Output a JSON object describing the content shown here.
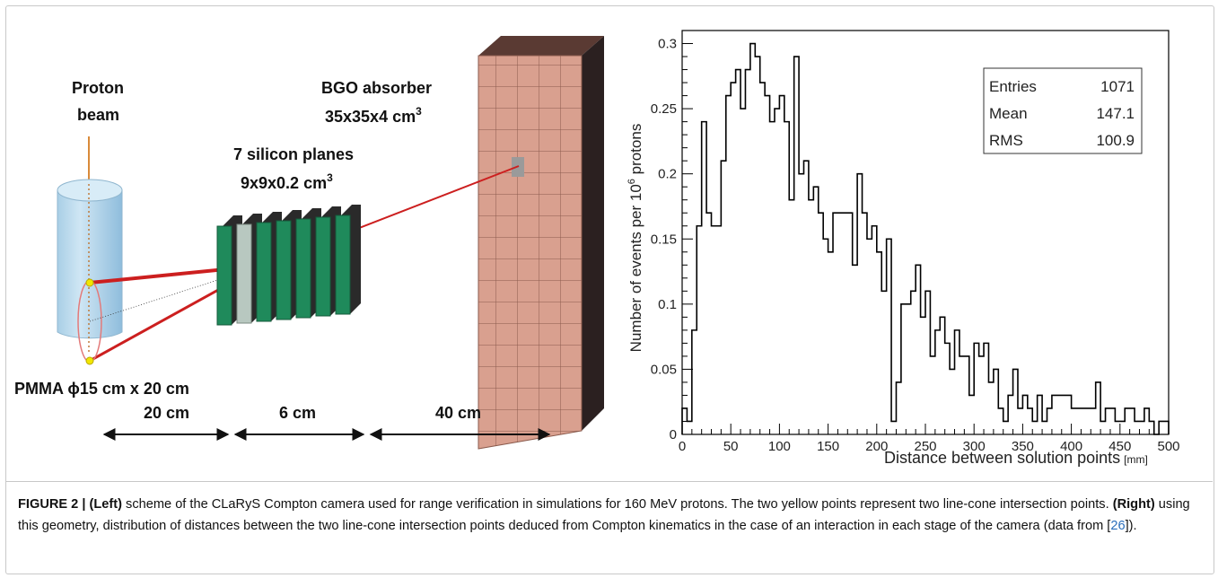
{
  "scheme": {
    "proton_label": [
      "Proton",
      "beam"
    ],
    "bgo_label": "BGO absorber",
    "bgo_dims": "35x35x4 cm",
    "silicon_label": "7 silicon planes",
    "silicon_dims": "9x9x0.2 cm",
    "cube_exp": "3",
    "pmma_label": "PMMA ϕ15 cm x 20 cm",
    "distances": [
      "20 cm",
      "6 cm",
      "40 cm"
    ],
    "colors": {
      "cylinder": "#bcd9ec",
      "silicon": "#1f8a5b",
      "absorber": "#d9a08f",
      "ray": "#cc1f1f",
      "point": "#f2e600"
    }
  },
  "chart_data": {
    "type": "histogram",
    "xlabel": "Distance  between solution points",
    "xunit": "[mm]",
    "ylabel": "Number of events per 10",
    "ylabel_exp": "6",
    "ylabel_tail": " protons",
    "xlim": [
      0,
      500
    ],
    "ylim": [
      0,
      0.31
    ],
    "x_ticks": [
      0,
      50,
      100,
      150,
      200,
      250,
      300,
      350,
      400,
      450,
      500
    ],
    "y_ticks": [
      0,
      0.05,
      0.1,
      0.15,
      0.2,
      0.25,
      0.3
    ],
    "y_tick_labels": [
      "0",
      "0.05",
      "0.1",
      "0.15",
      "0.2",
      "0.25",
      "0.3"
    ],
    "bin_width": 5,
    "values": [
      0.02,
      0.01,
      0.08,
      0.16,
      0.24,
      0.17,
      0.16,
      0.16,
      0.21,
      0.26,
      0.27,
      0.28,
      0.25,
      0.28,
      0.3,
      0.29,
      0.27,
      0.26,
      0.24,
      0.25,
      0.26,
      0.24,
      0.18,
      0.29,
      0.2,
      0.21,
      0.18,
      0.19,
      0.17,
      0.15,
      0.14,
      0.17,
      0.17,
      0.17,
      0.17,
      0.13,
      0.2,
      0.17,
      0.15,
      0.16,
      0.14,
      0.11,
      0.15,
      0.01,
      0.04,
      0.1,
      0.1,
      0.11,
      0.13,
      0.09,
      0.11,
      0.06,
      0.08,
      0.09,
      0.07,
      0.05,
      0.08,
      0.06,
      0.06,
      0.03,
      0.07,
      0.06,
      0.07,
      0.04,
      0.05,
      0.02,
      0.01,
      0.03,
      0.05,
      0.02,
      0.03,
      0.02,
      0.01,
      0.03,
      0.01,
      0.02,
      0.03,
      0.03,
      0.03,
      0.03,
      0.02,
      0.02,
      0.02,
      0.02,
      0.02,
      0.04,
      0.01,
      0.02,
      0.02,
      0.01,
      0.01,
      0.02,
      0.02,
      0.01,
      0.01,
      0.02,
      0.01,
      0.0,
      0.01,
      0.01
    ],
    "stats": [
      {
        "label": "Entries",
        "value": "1071"
      },
      {
        "label": "Mean",
        "value": "147.1"
      },
      {
        "label": "RMS",
        "value": "100.9"
      }
    ]
  },
  "caption": {
    "figure": "FIGURE 2 | ",
    "left": "(Left)",
    "t1": " scheme of the CLaRyS Compton camera used for range verification in simulations for 160 MeV protons. The two yellow points represent two line-cone intersection points. ",
    "right": "(Right)",
    "t2": " using this geometry, distribution of distances between the two line-cone intersection points deduced from Compton kinematics in the case of an interaction in each stage of the camera (data from [",
    "ref": "26",
    "t3": "])."
  }
}
